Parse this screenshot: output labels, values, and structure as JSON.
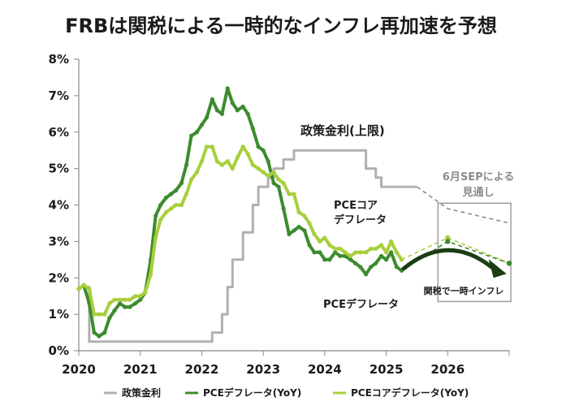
{
  "title": "FRBは関税による一時的なインフレ再加速を予想",
  "colors": {
    "policy": "#b0b0b0",
    "pce": "#3d8b2f",
    "core": "#a8cf3c",
    "proj_box": "#9e9e9e",
    "arrow": "#1a3d14"
  },
  "chart_data": {
    "type": "line",
    "title": "FRBは関税による一時的なインフレ再加速を予想",
    "x_tick_labels": [
      "2020",
      "2021",
      "2022",
      "2023",
      "2024",
      "2025",
      "2026"
    ],
    "y_tick_labels": [
      "0%",
      "1%",
      "2%",
      "3%",
      "4%",
      "5%",
      "6%",
      "7%",
      "8%"
    ],
    "xlim": [
      2020,
      2027
    ],
    "ylim": [
      0,
      8
    ],
    "y_unit": "%",
    "grid": false,
    "legend_position": "bottom",
    "legend": [
      "政策金利",
      "PCEデフレータ(YoY)",
      "PCEコアデフレータ(YoY)"
    ],
    "series": [
      {
        "name": "政策金利",
        "kind": "step",
        "points": [
          [
            2020.0,
            1.75
          ],
          [
            2020.17,
            1.75
          ],
          [
            2020.17,
            0.25
          ],
          [
            2022.17,
            0.25
          ],
          [
            2022.17,
            0.5
          ],
          [
            2022.33,
            0.5
          ],
          [
            2022.33,
            1.0
          ],
          [
            2022.42,
            1.0
          ],
          [
            2022.42,
            1.75
          ],
          [
            2022.5,
            1.75
          ],
          [
            2022.5,
            2.5
          ],
          [
            2022.67,
            2.5
          ],
          [
            2022.67,
            3.25
          ],
          [
            2022.83,
            3.25
          ],
          [
            2022.83,
            4.0
          ],
          [
            2022.92,
            4.0
          ],
          [
            2022.92,
            4.5
          ],
          [
            2023.08,
            4.5
          ],
          [
            2023.08,
            4.75
          ],
          [
            2023.17,
            4.75
          ],
          [
            2023.17,
            5.0
          ],
          [
            2023.33,
            5.0
          ],
          [
            2023.33,
            5.25
          ],
          [
            2023.5,
            5.25
          ],
          [
            2023.5,
            5.5
          ],
          [
            2024.67,
            5.5
          ],
          [
            2024.67,
            5.0
          ],
          [
            2024.83,
            5.0
          ],
          [
            2024.83,
            4.75
          ],
          [
            2024.92,
            4.75
          ],
          [
            2024.92,
            4.5
          ],
          [
            2025.5,
            4.5
          ]
        ]
      },
      {
        "name": "PCEデフレータ(YoY)",
        "points": [
          [
            2020.0,
            1.7
          ],
          [
            2020.08,
            1.8
          ],
          [
            2020.17,
            1.3
          ],
          [
            2020.25,
            0.5
          ],
          [
            2020.33,
            0.4
          ],
          [
            2020.42,
            0.5
          ],
          [
            2020.5,
            0.9
          ],
          [
            2020.58,
            1.1
          ],
          [
            2020.67,
            1.3
          ],
          [
            2020.75,
            1.2
          ],
          [
            2020.83,
            1.2
          ],
          [
            2020.92,
            1.3
          ],
          [
            2021.0,
            1.4
          ],
          [
            2021.08,
            1.6
          ],
          [
            2021.17,
            2.5
          ],
          [
            2021.25,
            3.7
          ],
          [
            2021.33,
            4.0
          ],
          [
            2021.42,
            4.2
          ],
          [
            2021.5,
            4.3
          ],
          [
            2021.58,
            4.4
          ],
          [
            2021.67,
            4.6
          ],
          [
            2021.75,
            5.1
          ],
          [
            2021.83,
            5.9
          ],
          [
            2021.92,
            6.0
          ],
          [
            2022.0,
            6.2
          ],
          [
            2022.08,
            6.4
          ],
          [
            2022.17,
            6.9
          ],
          [
            2022.25,
            6.6
          ],
          [
            2022.33,
            6.5
          ],
          [
            2022.42,
            7.2
          ],
          [
            2022.5,
            6.8
          ],
          [
            2022.58,
            6.6
          ],
          [
            2022.67,
            6.7
          ],
          [
            2022.75,
            6.5
          ],
          [
            2022.83,
            6.1
          ],
          [
            2022.92,
            5.6
          ],
          [
            2023.0,
            5.5
          ],
          [
            2023.08,
            5.2
          ],
          [
            2023.17,
            4.6
          ],
          [
            2023.25,
            4.5
          ],
          [
            2023.33,
            3.9
          ],
          [
            2023.42,
            3.2
          ],
          [
            2023.5,
            3.3
          ],
          [
            2023.58,
            3.4
          ],
          [
            2023.67,
            3.3
          ],
          [
            2023.75,
            2.9
          ],
          [
            2023.83,
            2.7
          ],
          [
            2023.92,
            2.7
          ],
          [
            2024.0,
            2.5
          ],
          [
            2024.08,
            2.5
          ],
          [
            2024.17,
            2.7
          ],
          [
            2024.25,
            2.6
          ],
          [
            2024.33,
            2.6
          ],
          [
            2024.42,
            2.5
          ],
          [
            2024.5,
            2.4
          ],
          [
            2024.58,
            2.3
          ],
          [
            2024.67,
            2.1
          ],
          [
            2024.75,
            2.3
          ],
          [
            2024.83,
            2.4
          ],
          [
            2024.92,
            2.6
          ],
          [
            2025.0,
            2.5
          ],
          [
            2025.08,
            2.7
          ],
          [
            2025.17,
            2.3
          ],
          [
            2025.25,
            2.2
          ]
        ]
      },
      {
        "name": "PCEコアデフレータ(YoY)",
        "points": [
          [
            2020.0,
            1.7
          ],
          [
            2020.08,
            1.8
          ],
          [
            2020.17,
            1.7
          ],
          [
            2020.25,
            1.0
          ],
          [
            2020.33,
            1.0
          ],
          [
            2020.42,
            1.0
          ],
          [
            2020.5,
            1.3
          ],
          [
            2020.58,
            1.4
          ],
          [
            2020.67,
            1.4
          ],
          [
            2020.75,
            1.4
          ],
          [
            2020.83,
            1.4
          ],
          [
            2020.92,
            1.5
          ],
          [
            2021.0,
            1.5
          ],
          [
            2021.08,
            1.6
          ],
          [
            2021.17,
            2.1
          ],
          [
            2021.25,
            3.1
          ],
          [
            2021.33,
            3.6
          ],
          [
            2021.42,
            3.8
          ],
          [
            2021.5,
            3.9
          ],
          [
            2021.58,
            4.0
          ],
          [
            2021.67,
            4.0
          ],
          [
            2021.75,
            4.3
          ],
          [
            2021.83,
            4.7
          ],
          [
            2021.92,
            4.9
          ],
          [
            2022.0,
            5.2
          ],
          [
            2022.08,
            5.6
          ],
          [
            2022.17,
            5.6
          ],
          [
            2022.25,
            5.2
          ],
          [
            2022.33,
            5.1
          ],
          [
            2022.42,
            5.2
          ],
          [
            2022.5,
            5.0
          ],
          [
            2022.58,
            5.3
          ],
          [
            2022.67,
            5.6
          ],
          [
            2022.75,
            5.4
          ],
          [
            2022.83,
            5.1
          ],
          [
            2022.92,
            5.0
          ],
          [
            2023.0,
            4.9
          ],
          [
            2023.08,
            4.8
          ],
          [
            2023.17,
            4.9
          ],
          [
            2023.25,
            4.7
          ],
          [
            2023.33,
            4.6
          ],
          [
            2023.42,
            4.3
          ],
          [
            2023.5,
            4.3
          ],
          [
            2023.58,
            3.8
          ],
          [
            2023.67,
            3.7
          ],
          [
            2023.75,
            3.5
          ],
          [
            2023.83,
            3.2
          ],
          [
            2023.92,
            3.0
          ],
          [
            2024.0,
            3.1
          ],
          [
            2024.08,
            2.9
          ],
          [
            2024.17,
            2.8
          ],
          [
            2024.25,
            2.8
          ],
          [
            2024.33,
            2.7
          ],
          [
            2024.42,
            2.6
          ],
          [
            2024.5,
            2.7
          ],
          [
            2024.58,
            2.7
          ],
          [
            2024.67,
            2.7
          ],
          [
            2024.75,
            2.8
          ],
          [
            2024.83,
            2.8
          ],
          [
            2024.92,
            2.9
          ],
          [
            2025.0,
            2.7
          ],
          [
            2025.08,
            3.0
          ],
          [
            2025.17,
            2.7
          ],
          [
            2025.25,
            2.5
          ]
        ]
      }
    ],
    "projections": [
      {
        "name": "PCEコアデフレータ(YoY)",
        "points": [
          [
            2025.25,
            2.5
          ],
          [
            2026.0,
            3.1
          ],
          [
            2027.0,
            2.4
          ]
        ]
      },
      {
        "name": "PCEデフレータ(YoY)",
        "points": [
          [
            2025.25,
            2.2
          ],
          [
            2026.0,
            3.0
          ],
          [
            2027.0,
            2.4
          ]
        ]
      },
      {
        "name": "政策金利",
        "points": [
          [
            2025.5,
            4.5
          ],
          [
            2026.0,
            3.9
          ],
          [
            2027.0,
            3.5
          ]
        ]
      }
    ],
    "annotations": {
      "policy_label": "政策金利(上限)",
      "core_label_line1": "PCEコア",
      "core_label_line2": "デフレータ",
      "pce_label": "PCEデフレータ",
      "sep_label_line1": "6月SEPによる",
      "sep_label_line2": "見通し",
      "tariff_label": "関税で一時インフレ"
    }
  }
}
